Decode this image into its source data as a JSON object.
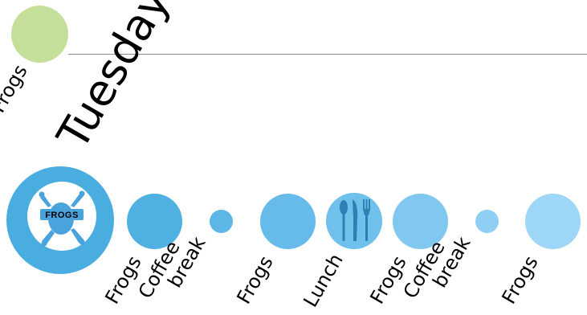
{
  "previous_day": {
    "label": "Frogs",
    "color": "#c3df9a"
  },
  "day": {
    "label": "Tuesday"
  },
  "logo": {
    "text": "FROGS",
    "ring_color": "#49ade0",
    "frog_color": "#4aa3dc"
  },
  "schedule": [
    {
      "label": "Frogs",
      "kind": "session",
      "color": "#4fb0e2"
    },
    {
      "label_lines": [
        "Coffee",
        "break"
      ],
      "kind": "break",
      "color": "#5cb6e6"
    },
    {
      "label": "Frogs",
      "kind": "session",
      "color": "#66bbea"
    },
    {
      "label": "Lunch",
      "kind": "meal",
      "color": "#70c0ec",
      "icon": "cutlery-icon"
    },
    {
      "label": "Frogs",
      "kind": "session",
      "color": "#80c8f0"
    },
    {
      "label_lines": [
        "Coffee",
        "break"
      ],
      "kind": "break",
      "color": "#8ecff3"
    },
    {
      "label": "Frogs",
      "kind": "session",
      "color": "#9dd6f6"
    }
  ]
}
